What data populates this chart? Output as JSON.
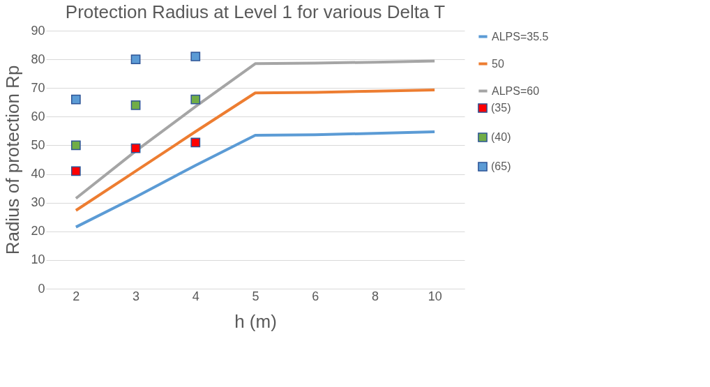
{
  "chart_data": {
    "type": "line",
    "title": "Protection Radius at Level 1 for various Delta T",
    "xlabel": "h (m)",
    "ylabel": "Radius of protection Rp",
    "categories": [
      "2",
      "3",
      "4",
      "5",
      "6",
      "8",
      "10"
    ],
    "ylim": [
      0,
      90
    ],
    "yticks": [
      0,
      10,
      20,
      30,
      40,
      50,
      60,
      70,
      80,
      90
    ],
    "grid": "y",
    "legend": "right",
    "series": [
      {
        "name": "ALPS=35.5",
        "color": "#5b9bd5",
        "values": [
          21.5,
          32,
          43,
          53.5,
          53.7,
          54.2,
          54.7
        ]
      },
      {
        "name": "50",
        "color": "#ed7d31",
        "values": [
          27.3,
          41,
          54.8,
          68.3,
          68.5,
          68.9,
          69.3
        ]
      },
      {
        "name": "ALPS=60",
        "color": "#a5a5a5",
        "values": [
          31.5,
          48,
          63.5,
          78.5,
          78.7,
          79,
          79.4
        ]
      },
      {
        "name": "(35)",
        "color": "#ff0000",
        "type": "scatter",
        "marker": "square",
        "x": [
          "2",
          "3",
          "4"
        ],
        "values": [
          41,
          49,
          51
        ]
      },
      {
        "name": "(40)",
        "color": "#70ad47",
        "type": "scatter",
        "marker": "square",
        "x": [
          "2",
          "3",
          "4"
        ],
        "values": [
          50,
          64,
          66
        ]
      },
      {
        "name": "(65)",
        "color": "#5b9bd5",
        "type": "scatter",
        "marker": "square",
        "x": [
          "2",
          "3",
          "4"
        ],
        "values": [
          66,
          80,
          81
        ]
      }
    ]
  }
}
